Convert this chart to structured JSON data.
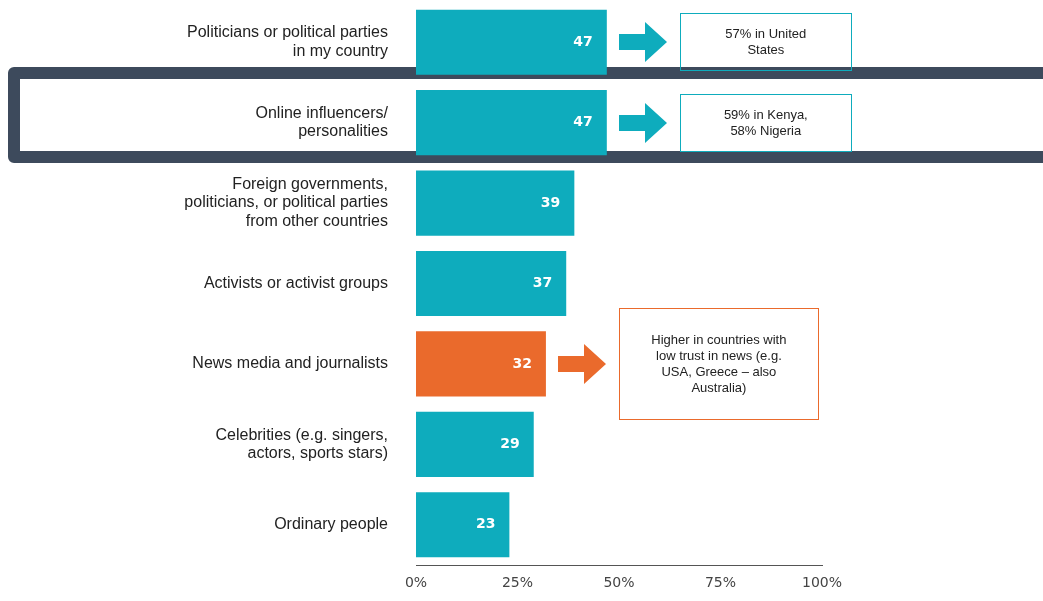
{
  "chart_data": {
    "type": "bar",
    "orientation": "horizontal",
    "categories": [
      "Politicians or political parties in my country",
      "Online influencers/ personalities",
      "Foreign governments, politicians, or political parties from other countries",
      "Activists or activist groups",
      "News media and journalists",
      "Celebrities (e.g. singers, actors, sports stars)",
      "Ordinary people"
    ],
    "values": [
      47,
      47,
      39,
      37,
      32,
      29,
      23
    ],
    "colors": [
      "#0eacbd",
      "#0eacbd",
      "#0eacbd",
      "#0eacbd",
      "#ea6a2c",
      "#0eacbd",
      "#0eacbd"
    ],
    "xlim": [
      0,
      100
    ],
    "xticks": [
      {
        "value": 0,
        "label": "0%"
      },
      {
        "value": 25,
        "label": "25%"
      },
      {
        "value": 50,
        "label": "50%"
      },
      {
        "value": 75,
        "label": "75%"
      },
      {
        "value": 100,
        "label": "100%"
      }
    ],
    "data_labels": true,
    "grid": false,
    "legend": false,
    "annotations": [
      "57% in United States",
      "59% in Kenya, 58% Nigeria",
      "Higher in countries with low trust in news (e.g. USA, Greece – also Australia)"
    ]
  }
}
